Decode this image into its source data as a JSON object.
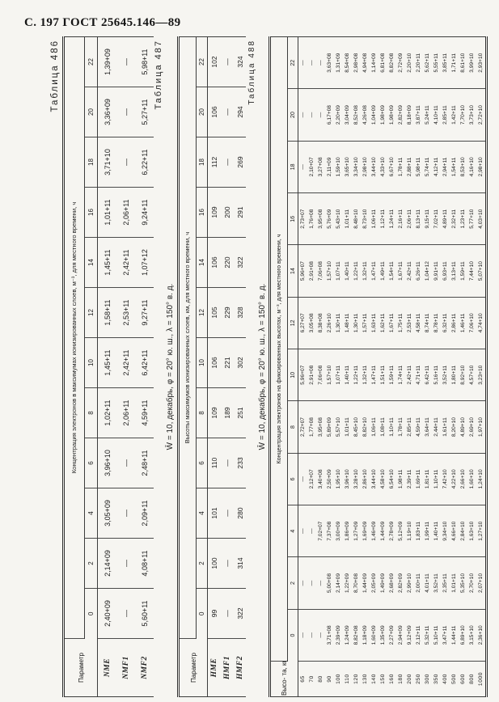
{
  "page": {
    "header": "С. 197 ГОСТ 25645.146—89"
  },
  "tables": [
    {
      "label": "Таблица 486",
      "caption": null,
      "param_header": "Параметр",
      "span_header": "Концентрация электронов в максимумах ионизированных слоев, м⁻³, для местного времени, ч",
      "time_columns": [
        "0",
        "2",
        "4",
        "6",
        "8",
        "10",
        "12",
        "14",
        "16",
        "18",
        "20",
        "22"
      ],
      "rows": [
        {
          "name": "NME",
          "values": [
            "2,40+09",
            "2,14+09",
            "3,05+09",
            "3,96+10",
            "1,02+11",
            "1,45+11",
            "1,58+11",
            "1,45+11",
            "1,01+11",
            "3,71+10",
            "3,36+09",
            "1,39+09"
          ]
        },
        {
          "name": "NMF1",
          "values": [
            "—",
            "—",
            "—",
            "—",
            "2,06+11",
            "2,42+11",
            "2,53+11",
            "2,42+11",
            "2,06+11",
            "—",
            "—",
            "—"
          ]
        },
        {
          "name": "NMF2",
          "values": [
            "5,60+11",
            "4,08+11",
            "2,09+11",
            "2,48+11",
            "4,59+11",
            "6,42+11",
            "9,27+11",
            "1,07+12",
            "9,24+11",
            "6,22+11",
            "5,27+11",
            "5,98+11"
          ]
        }
      ]
    },
    {
      "label": "Таблица 487",
      "caption": "W̄ = 10, декабрь, φ = 20° ю. ш., λ = 150° в. д.",
      "param_header": "Параметр",
      "span_header": "Высоты максимумов ионизированных слоев, км, для местного времени, ч",
      "time_columns": [
        "0",
        "2",
        "4",
        "6",
        "8",
        "10",
        "12",
        "14",
        "16",
        "18",
        "20",
        "22"
      ],
      "rows": [
        {
          "name": "HME",
          "values": [
            "99",
            "100",
            "101",
            "110",
            "109",
            "106",
            "105",
            "106",
            "109",
            "112",
            "106",
            "102"
          ]
        },
        {
          "name": "HMF1",
          "values": [
            "—",
            "—",
            "—",
            "—",
            "189",
            "221",
            "229",
            "220",
            "200",
            "—",
            "—",
            "—"
          ]
        },
        {
          "name": "HMF2",
          "values": [
            "322",
            "314",
            "280",
            "233",
            "251",
            "302",
            "328",
            "322",
            "291",
            "269",
            "294",
            "324"
          ]
        }
      ]
    },
    {
      "label": "Таблица 488",
      "caption": "W̄ = 10, декабрь, φ = 20° ю. ш., λ = 150° в. д.",
      "param_header": "Высо-\nта, км",
      "span_header": "Концентрация электронов на фиксированных высотах, м⁻³, для местного времени, ч",
      "time_columns": [
        "0",
        "2",
        "4",
        "6",
        "8",
        "10",
        "12",
        "14",
        "16",
        "18",
        "20",
        "22"
      ],
      "rows": [
        {
          "name": "65",
          "values": [
            "—",
            "—",
            "—",
            "—",
            "2,72+07",
            "5,96+07",
            "6,27+07",
            "5,96+07",
            "2,73+07",
            "—",
            "—",
            "—"
          ]
        },
        {
          "name": "70",
          "values": [
            "—",
            "—",
            "—",
            "2,12+07",
            "1,77+08",
            "2,91+08",
            "3,05+08",
            "2,91+08",
            "1,76+08",
            "2,10+07",
            "—",
            "—"
          ]
        },
        {
          "name": "80",
          "values": [
            "—",
            "—",
            "7,02+07",
            "3,40+08",
            "3,95+08",
            "7,06+08",
            "8,38+08",
            "7,06+08",
            "3,95+08",
            "3,27+08",
            "—",
            "—"
          ]
        },
        {
          "name": "90",
          "values": [
            "3,71+08",
            "5,00+08",
            "7,37+08",
            "2,50+09",
            "5,89+09",
            "1,57+10",
            "2,26+10",
            "1,57+10",
            "5,76+09",
            "2,11+09",
            "6,17+08",
            "3,63+08"
          ]
        },
        {
          "name": "100",
          "values": [
            "2,39+09",
            "2,14+09",
            "3,00+09",
            "1,95+10",
            "5,57+10",
            "1,07+11",
            "1,30+11",
            "1,07+11",
            "5,43+10",
            "1,59+10",
            "2,20+09",
            "1,31+09"
          ]
        },
        {
          "name": "110",
          "values": [
            "1,24+09",
            "1,22+09",
            "1,86+09",
            "3,96+10",
            "1,01+11",
            "1,40+11",
            "1,48+11",
            "1,40+11",
            "1,01+11",
            "3,65+10",
            "3,04+09",
            "8,54+08"
          ]
        },
        {
          "name": "120",
          "values": [
            "8,82+08",
            "8,70+08",
            "1,27+09",
            "3,28+10",
            "8,45+10",
            "1,22+11",
            "1,30+11",
            "1,22+11",
            "8,48+10",
            "3,34+10",
            "8,52+08",
            "2,98+08"
          ]
        },
        {
          "name": "130",
          "values": [
            "1,18+09",
            "1,44+09",
            "1,69+09",
            "2,86+10",
            "8,82+10",
            "1,32+11",
            "1,57+11",
            "1,32+11",
            "8,73+10",
            "2,98+10",
            "4,26+08",
            "4,94+08"
          ]
        },
        {
          "name": "140",
          "values": [
            "1,60+09",
            "2,05+09",
            "1,46+09",
            "3,44+10",
            "1,06+11",
            "1,47+11",
            "1,63+11",
            "1,47+11",
            "1,06+11",
            "3,44+10",
            "1,04+09",
            "1,14+09"
          ]
        },
        {
          "name": "150",
          "values": [
            "1,35+09",
            "1,49+09",
            "1,44+09",
            "4,58+10",
            "1,08+11",
            "1,51+11",
            "1,62+11",
            "1,49+11",
            "1,12+11",
            "4,33+10",
            "1,98+09",
            "6,81+08"
          ]
        },
        {
          "name": "160",
          "values": [
            "2,27+09",
            "2,68+09",
            "2,78+09",
            "6,54+10",
            "1,10+11",
            "1,59+11",
            "1,67+11",
            "1,54+11",
            "1,24+11",
            "6,67+10",
            "1,98+09",
            "8,82+08"
          ]
        },
        {
          "name": "180",
          "values": [
            "2,94+09",
            "2,82+09",
            "5,12+09",
            "1,98+11",
            "1,78+11",
            "1,74+11",
            "1,75+11",
            "1,67+11",
            "2,16+11",
            "1,78+11",
            "2,82+09",
            "2,72+09"
          ]
        },
        {
          "name": "200",
          "values": [
            "9,12+09",
            "2,99+10",
            "1,19+10",
            "2,39+11",
            "2,85+11",
            "2,42+11",
            "2,53+11",
            "2,42+11",
            "2,06+11",
            "2,88+11",
            "8,18+09",
            "2,20+10"
          ]
        },
        {
          "name": "250",
          "values": [
            "2,12+11",
            "2,00+11",
            "1,83+11",
            "1,69+11",
            "4,59+11",
            "4,71+11",
            "4,58+11",
            "6,26+11",
            "8,13+11",
            "5,98+11",
            "3,87+11",
            "2,20+11"
          ]
        },
        {
          "name": "300",
          "values": [
            "5,32+11",
            "4,01+11",
            "1,99+11",
            "1,81+11",
            "3,64+11",
            "6,42+11",
            "8,74+11",
            "1,04+12",
            "9,15+11",
            "5,74+11",
            "5,24+11",
            "5,62+11"
          ]
        },
        {
          "name": "350",
          "values": [
            "5,10+11",
            "3,52+11",
            "1,40+11",
            "1,10+11",
            "2,44+11",
            "5,16+11",
            "8,78+11",
            "9,91+11",
            "7,02+11",
            "4,12+11",
            "4,10+11",
            "5,55+11"
          ]
        },
        {
          "name": "400",
          "values": [
            "3,47+11",
            "2,35+11",
            "9,34+10",
            "7,42+10",
            "1,61+11",
            "3,52+11",
            "6,32+11",
            "6,93+11",
            "4,89+11",
            "2,94+11",
            "2,85+11",
            "3,85+11"
          ]
        },
        {
          "name": "500",
          "values": [
            "1,44+11",
            "1,01+11",
            "4,66+10",
            "4,22+10",
            "8,20+10",
            "1,80+11",
            "2,86+11",
            "3,13+11",
            "2,32+11",
            "1,54+11",
            "1,42+11",
            "1,71+11"
          ]
        },
        {
          "name": "600",
          "values": [
            "6,89+10",
            "5,35+10",
            "2,84+10",
            "2,66+10",
            "4,89+10",
            "8,92+10",
            "1,46+11",
            "1,59+11",
            "1,23+11",
            "8,53+10",
            "7,70+10",
            "8,61+10"
          ]
        },
        {
          "name": "800",
          "values": [
            "3,15+10",
            "2,70+10",
            "1,63+10",
            "1,60+10",
            "2,69+10",
            "4,57+10",
            "7,06+10",
            "7,44+10",
            "5,77+10",
            "4,16+10",
            "3,73+10",
            "3,99+10"
          ]
        },
        {
          "name": "1000",
          "values": [
            "2,36+10",
            "2,07+10",
            "1,27+10",
            "1,24+10",
            "1,97+10",
            "3,23+10",
            "4,74+10",
            "5,07+10",
            "4,03+10",
            "2,98+10",
            "2,72+10",
            "2,93+10"
          ]
        }
      ]
    }
  ]
}
